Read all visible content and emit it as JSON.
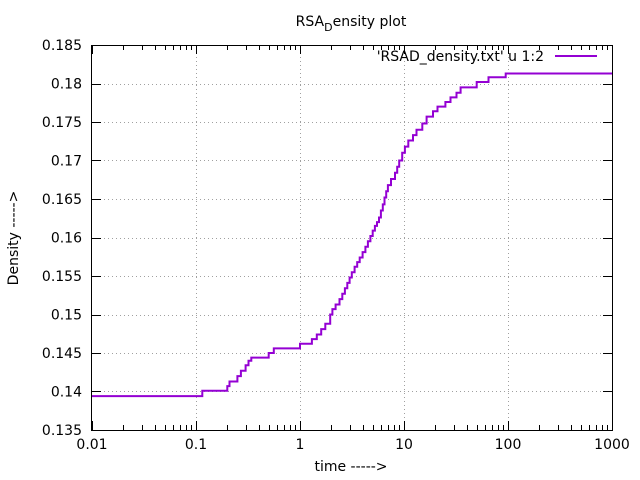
{
  "chart_data": {
    "type": "line",
    "title_main": "RSA",
    "title_sub": "D",
    "title_tail": "ensity plot",
    "xlabel": "time ----->",
    "ylabel": "Density ----->",
    "xscale": "log",
    "xlim": [
      0.01,
      1000
    ],
    "ylim": [
      0.135,
      0.185
    ],
    "grid": true,
    "legend_position": "top-right",
    "x_ticks": [
      {
        "v": 0.01,
        "label": "0.01"
      },
      {
        "v": 0.1,
        "label": "0.1"
      },
      {
        "v": 1,
        "label": "1"
      },
      {
        "v": 10,
        "label": "10"
      },
      {
        "v": 100,
        "label": "100"
      },
      {
        "v": 1000,
        "label": "1000"
      }
    ],
    "y_ticks": [
      {
        "v": 0.135,
        "label": "0.135"
      },
      {
        "v": 0.14,
        "label": "0.14"
      },
      {
        "v": 0.145,
        "label": "0.145"
      },
      {
        "v": 0.15,
        "label": "0.15"
      },
      {
        "v": 0.155,
        "label": "0.155"
      },
      {
        "v": 0.16,
        "label": "0.16"
      },
      {
        "v": 0.165,
        "label": "0.165"
      },
      {
        "v": 0.17,
        "label": "0.17"
      },
      {
        "v": 0.175,
        "label": "0.175"
      },
      {
        "v": 0.18,
        "label": "0.18"
      },
      {
        "v": 0.185,
        "label": "0.185"
      }
    ],
    "series": [
      {
        "name": "'RSAD_density.txt' u 1:2",
        "color": "#9400d3",
        "step": true,
        "points": [
          [
            0.01,
            0.1394
          ],
          [
            0.11,
            0.1394
          ],
          [
            0.115,
            0.1401
          ],
          [
            0.19,
            0.1401
          ],
          [
            0.2,
            0.1407
          ],
          [
            0.21,
            0.1413
          ],
          [
            0.24,
            0.1413
          ],
          [
            0.25,
            0.142
          ],
          [
            0.27,
            0.1427
          ],
          [
            0.3,
            0.1434
          ],
          [
            0.32,
            0.144
          ],
          [
            0.34,
            0.1444
          ],
          [
            0.48,
            0.1444
          ],
          [
            0.5,
            0.145
          ],
          [
            0.56,
            0.1456
          ],
          [
            0.95,
            0.1456
          ],
          [
            1.0,
            0.1462
          ],
          [
            1.25,
            0.1462
          ],
          [
            1.3,
            0.1468
          ],
          [
            1.45,
            0.1474
          ],
          [
            1.6,
            0.1481
          ],
          [
            1.75,
            0.1488
          ],
          [
            1.95,
            0.15
          ],
          [
            2.05,
            0.1507
          ],
          [
            2.2,
            0.1513
          ],
          [
            2.4,
            0.152
          ],
          [
            2.55,
            0.1527
          ],
          [
            2.7,
            0.1534
          ],
          [
            2.85,
            0.1541
          ],
          [
            3.0,
            0.1548
          ],
          [
            3.15,
            0.1555
          ],
          [
            3.35,
            0.1562
          ],
          [
            3.55,
            0.1568
          ],
          [
            3.75,
            0.1574
          ],
          [
            4.0,
            0.1581
          ],
          [
            4.25,
            0.1588
          ],
          [
            4.5,
            0.1595
          ],
          [
            4.75,
            0.1602
          ],
          [
            5.0,
            0.1609
          ],
          [
            5.25,
            0.1615
          ],
          [
            5.5,
            0.162
          ],
          [
            5.75,
            0.1626
          ],
          [
            6.0,
            0.1635
          ],
          [
            6.25,
            0.1643
          ],
          [
            6.5,
            0.1652
          ],
          [
            6.75,
            0.166
          ],
          [
            7.0,
            0.1668
          ],
          [
            7.5,
            0.1676
          ],
          [
            8.2,
            0.1684
          ],
          [
            8.6,
            0.1692
          ],
          [
            9.0,
            0.17
          ],
          [
            9.6,
            0.171
          ],
          [
            10.2,
            0.1718
          ],
          [
            11.0,
            0.1726
          ],
          [
            12.2,
            0.1733
          ],
          [
            13.2,
            0.174
          ],
          [
            15.0,
            0.1748
          ],
          [
            16.5,
            0.1757
          ],
          [
            19.0,
            0.1764
          ],
          [
            21.0,
            0.177
          ],
          [
            25.0,
            0.1776
          ],
          [
            28.0,
            0.1782
          ],
          [
            32.0,
            0.1788
          ],
          [
            35.0,
            0.1795
          ],
          [
            50.0,
            0.1802
          ],
          [
            65.0,
            0.1808
          ],
          [
            95.0,
            0.1813
          ],
          [
            1000,
            0.1813
          ]
        ]
      }
    ]
  }
}
